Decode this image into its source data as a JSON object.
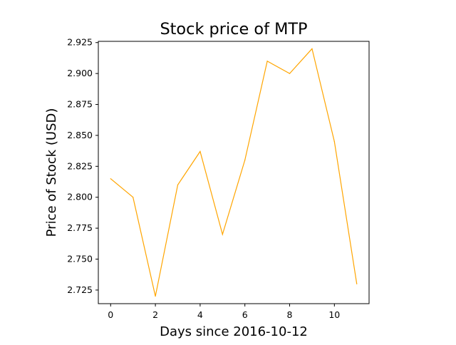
{
  "chart_data": {
    "type": "line",
    "title": "Stock price of MTP",
    "xlabel": "Days since 2016-10-12",
    "ylabel": "Price of Stock (USD)",
    "x": [
      0,
      1,
      2,
      3,
      4,
      5,
      6,
      7,
      8,
      9,
      10,
      11
    ],
    "series": [
      {
        "color": "#ffa500",
        "values": [
          2.815,
          2.8,
          2.72,
          2.81,
          2.837,
          2.77,
          2.83,
          2.91,
          2.9,
          2.92,
          2.845,
          2.73
        ]
      }
    ],
    "xlim": [
      -0.55,
      11.55
    ],
    "ylim": [
      2.714,
      2.926
    ],
    "xticks": [
      "0",
      "2",
      "4",
      "6",
      "8",
      "10"
    ],
    "yticks": [
      "2.725",
      "2.750",
      "2.775",
      "2.800",
      "2.825",
      "2.850",
      "2.875",
      "2.900",
      "2.925"
    ],
    "grid": false,
    "legend": false
  }
}
